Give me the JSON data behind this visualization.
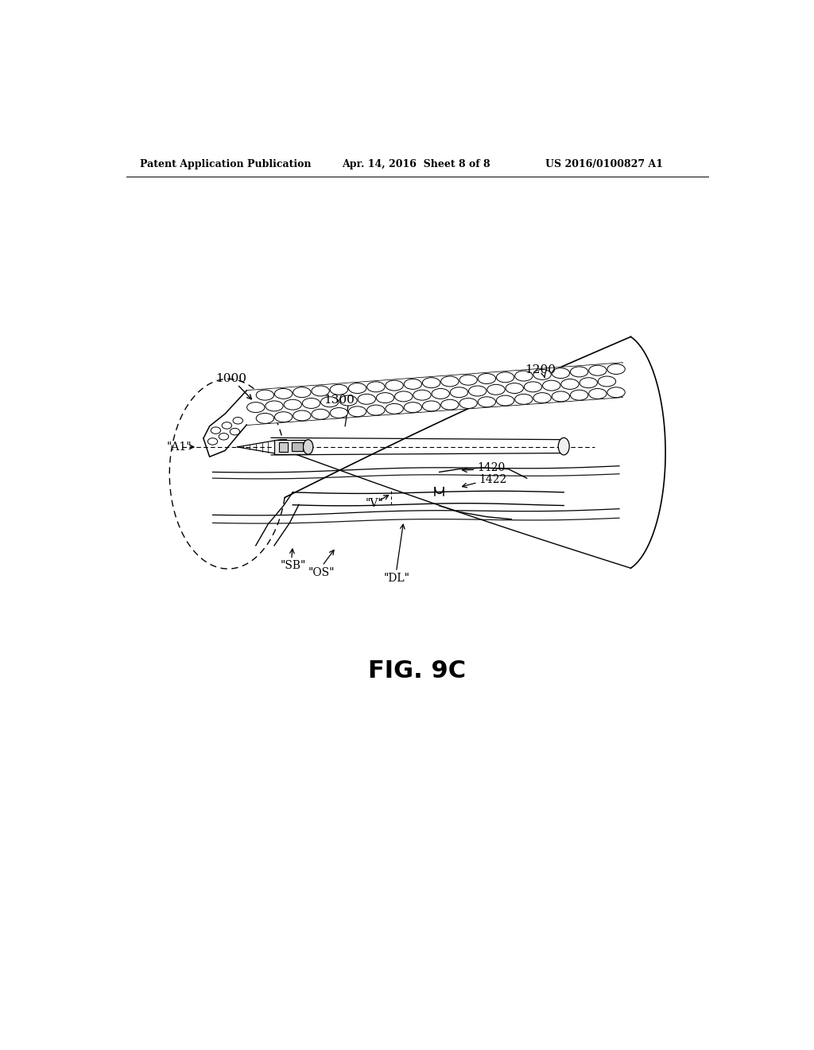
{
  "bg_color": "#ffffff",
  "header_left": "Patent Application Publication",
  "header_mid": "Apr. 14, 2016  Sheet 8 of 8",
  "header_right": "US 2016/0100827 A1",
  "fig_label": "FIG. 9C",
  "label_1000": "1000",
  "label_1200": "1200",
  "label_1300": "1300",
  "label_A1": "\"A1\"",
  "label_V": "\"V\"",
  "label_SB": "\"SB\"",
  "label_OS": "\"OS\"",
  "label_DL": "\"DL\"",
  "label_1420": "1420",
  "label_1422": "1422",
  "header_fontsize": 9,
  "label_fontsize": 10,
  "fig_fontsize": 22
}
